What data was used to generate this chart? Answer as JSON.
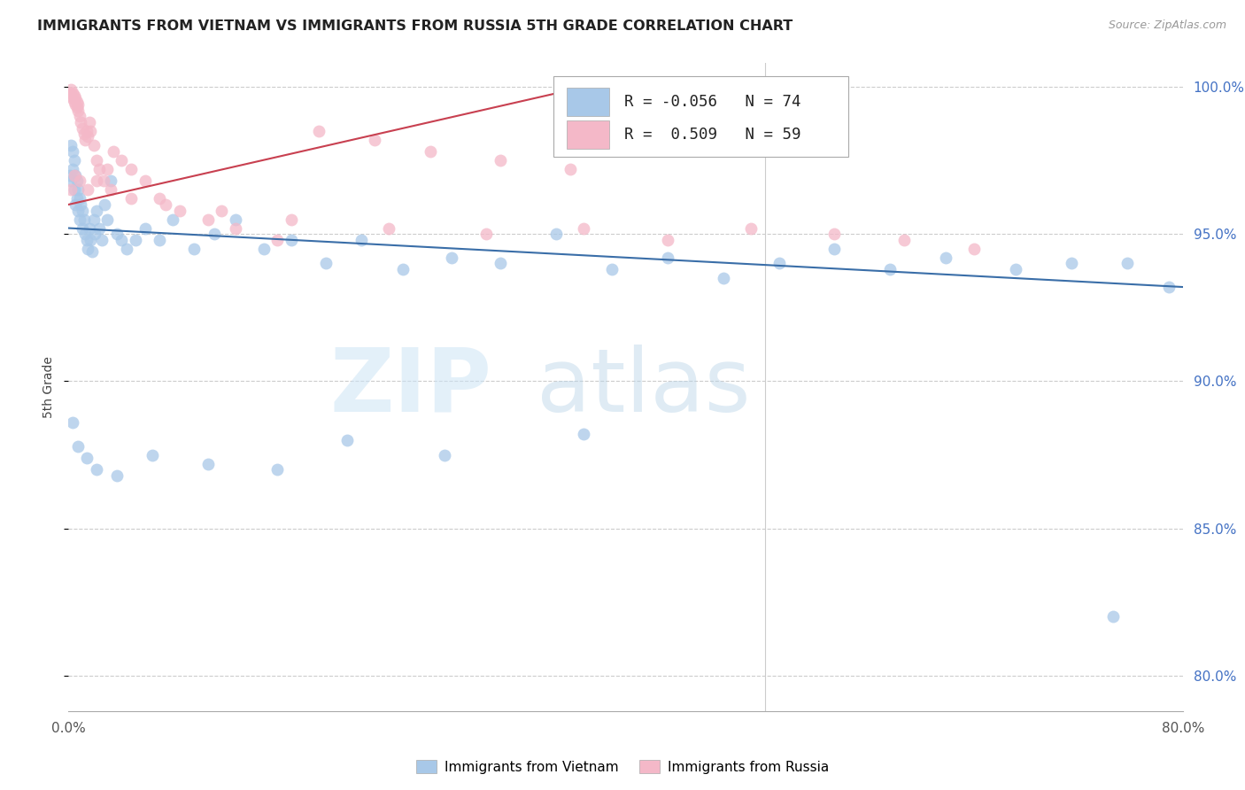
{
  "title": "IMMIGRANTS FROM VIETNAM VS IMMIGRANTS FROM RUSSIA 5TH GRADE CORRELATION CHART",
  "source": "Source: ZipAtlas.com",
  "ylabel": "5th Grade",
  "right_yticks": [
    "100.0%",
    "95.0%",
    "90.0%",
    "85.0%",
    "80.0%"
  ],
  "right_ytick_vals": [
    1.0,
    0.95,
    0.9,
    0.85,
    0.8
  ],
  "legend_blue_label": "Immigrants from Vietnam",
  "legend_pink_label": "Immigrants from Russia",
  "blue_color": "#a8c8e8",
  "pink_color": "#f4b8c8",
  "blue_line_color": "#3a6ea8",
  "pink_line_color": "#c84050",
  "background_color": "#ffffff",
  "watermark_zip": "ZIP",
  "watermark_atlas": "atlas",
  "xlim": [
    0.0,
    0.8
  ],
  "ylim": [
    0.788,
    1.008
  ],
  "blue_x": [
    0.001,
    0.002,
    0.002,
    0.003,
    0.003,
    0.004,
    0.004,
    0.005,
    0.005,
    0.006,
    0.006,
    0.007,
    0.007,
    0.008,
    0.008,
    0.009,
    0.01,
    0.01,
    0.011,
    0.012,
    0.013,
    0.014,
    0.015,
    0.016,
    0.017,
    0.018,
    0.019,
    0.02,
    0.022,
    0.024,
    0.026,
    0.028,
    0.03,
    0.035,
    0.038,
    0.042,
    0.048,
    0.055,
    0.065,
    0.075,
    0.09,
    0.105,
    0.12,
    0.14,
    0.16,
    0.185,
    0.21,
    0.24,
    0.275,
    0.31,
    0.35,
    0.39,
    0.43,
    0.47,
    0.51,
    0.55,
    0.59,
    0.63,
    0.68,
    0.72,
    0.76,
    0.79,
    0.003,
    0.007,
    0.013,
    0.02,
    0.035,
    0.06,
    0.1,
    0.15,
    0.2,
    0.27,
    0.37,
    0.75
  ],
  "blue_y": [
    0.97,
    0.968,
    0.98,
    0.972,
    0.978,
    0.965,
    0.975,
    0.96,
    0.97,
    0.962,
    0.968,
    0.958,
    0.965,
    0.955,
    0.962,
    0.96,
    0.952,
    0.958,
    0.955,
    0.95,
    0.948,
    0.945,
    0.952,
    0.948,
    0.944,
    0.955,
    0.95,
    0.958,
    0.952,
    0.948,
    0.96,
    0.955,
    0.968,
    0.95,
    0.948,
    0.945,
    0.948,
    0.952,
    0.948,
    0.955,
    0.945,
    0.95,
    0.955,
    0.945,
    0.948,
    0.94,
    0.948,
    0.938,
    0.942,
    0.94,
    0.95,
    0.938,
    0.942,
    0.935,
    0.94,
    0.945,
    0.938,
    0.942,
    0.938,
    0.94,
    0.94,
    0.932,
    0.886,
    0.878,
    0.874,
    0.87,
    0.868,
    0.875,
    0.872,
    0.87,
    0.88,
    0.875,
    0.882,
    0.82
  ],
  "pink_x": [
    0.001,
    0.002,
    0.002,
    0.003,
    0.003,
    0.004,
    0.004,
    0.005,
    0.005,
    0.006,
    0.006,
    0.007,
    0.007,
    0.008,
    0.009,
    0.01,
    0.011,
    0.012,
    0.013,
    0.014,
    0.015,
    0.016,
    0.018,
    0.02,
    0.022,
    0.025,
    0.028,
    0.032,
    0.038,
    0.045,
    0.055,
    0.065,
    0.08,
    0.1,
    0.12,
    0.15,
    0.18,
    0.22,
    0.26,
    0.31,
    0.36,
    0.002,
    0.004,
    0.008,
    0.014,
    0.02,
    0.03,
    0.045,
    0.07,
    0.11,
    0.16,
    0.23,
    0.3,
    0.37,
    0.43,
    0.49,
    0.55,
    0.6,
    0.65
  ],
  "pink_y": [
    0.998,
    0.997,
    0.999,
    0.996,
    0.998,
    0.995,
    0.997,
    0.994,
    0.996,
    0.993,
    0.995,
    0.992,
    0.994,
    0.99,
    0.988,
    0.986,
    0.984,
    0.982,
    0.985,
    0.983,
    0.988,
    0.985,
    0.98,
    0.975,
    0.972,
    0.968,
    0.972,
    0.978,
    0.975,
    0.972,
    0.968,
    0.962,
    0.958,
    0.955,
    0.952,
    0.948,
    0.985,
    0.982,
    0.978,
    0.975,
    0.972,
    0.965,
    0.97,
    0.968,
    0.965,
    0.968,
    0.965,
    0.962,
    0.96,
    0.958,
    0.955,
    0.952,
    0.95,
    0.952,
    0.948,
    0.952,
    0.95,
    0.948,
    0.945
  ],
  "blue_trend_x": [
    0.0,
    0.8
  ],
  "blue_trend_y": [
    0.952,
    0.932
  ],
  "pink_trend_x": [
    0.0,
    0.38
  ],
  "pink_trend_y": [
    0.96,
    1.001
  ]
}
